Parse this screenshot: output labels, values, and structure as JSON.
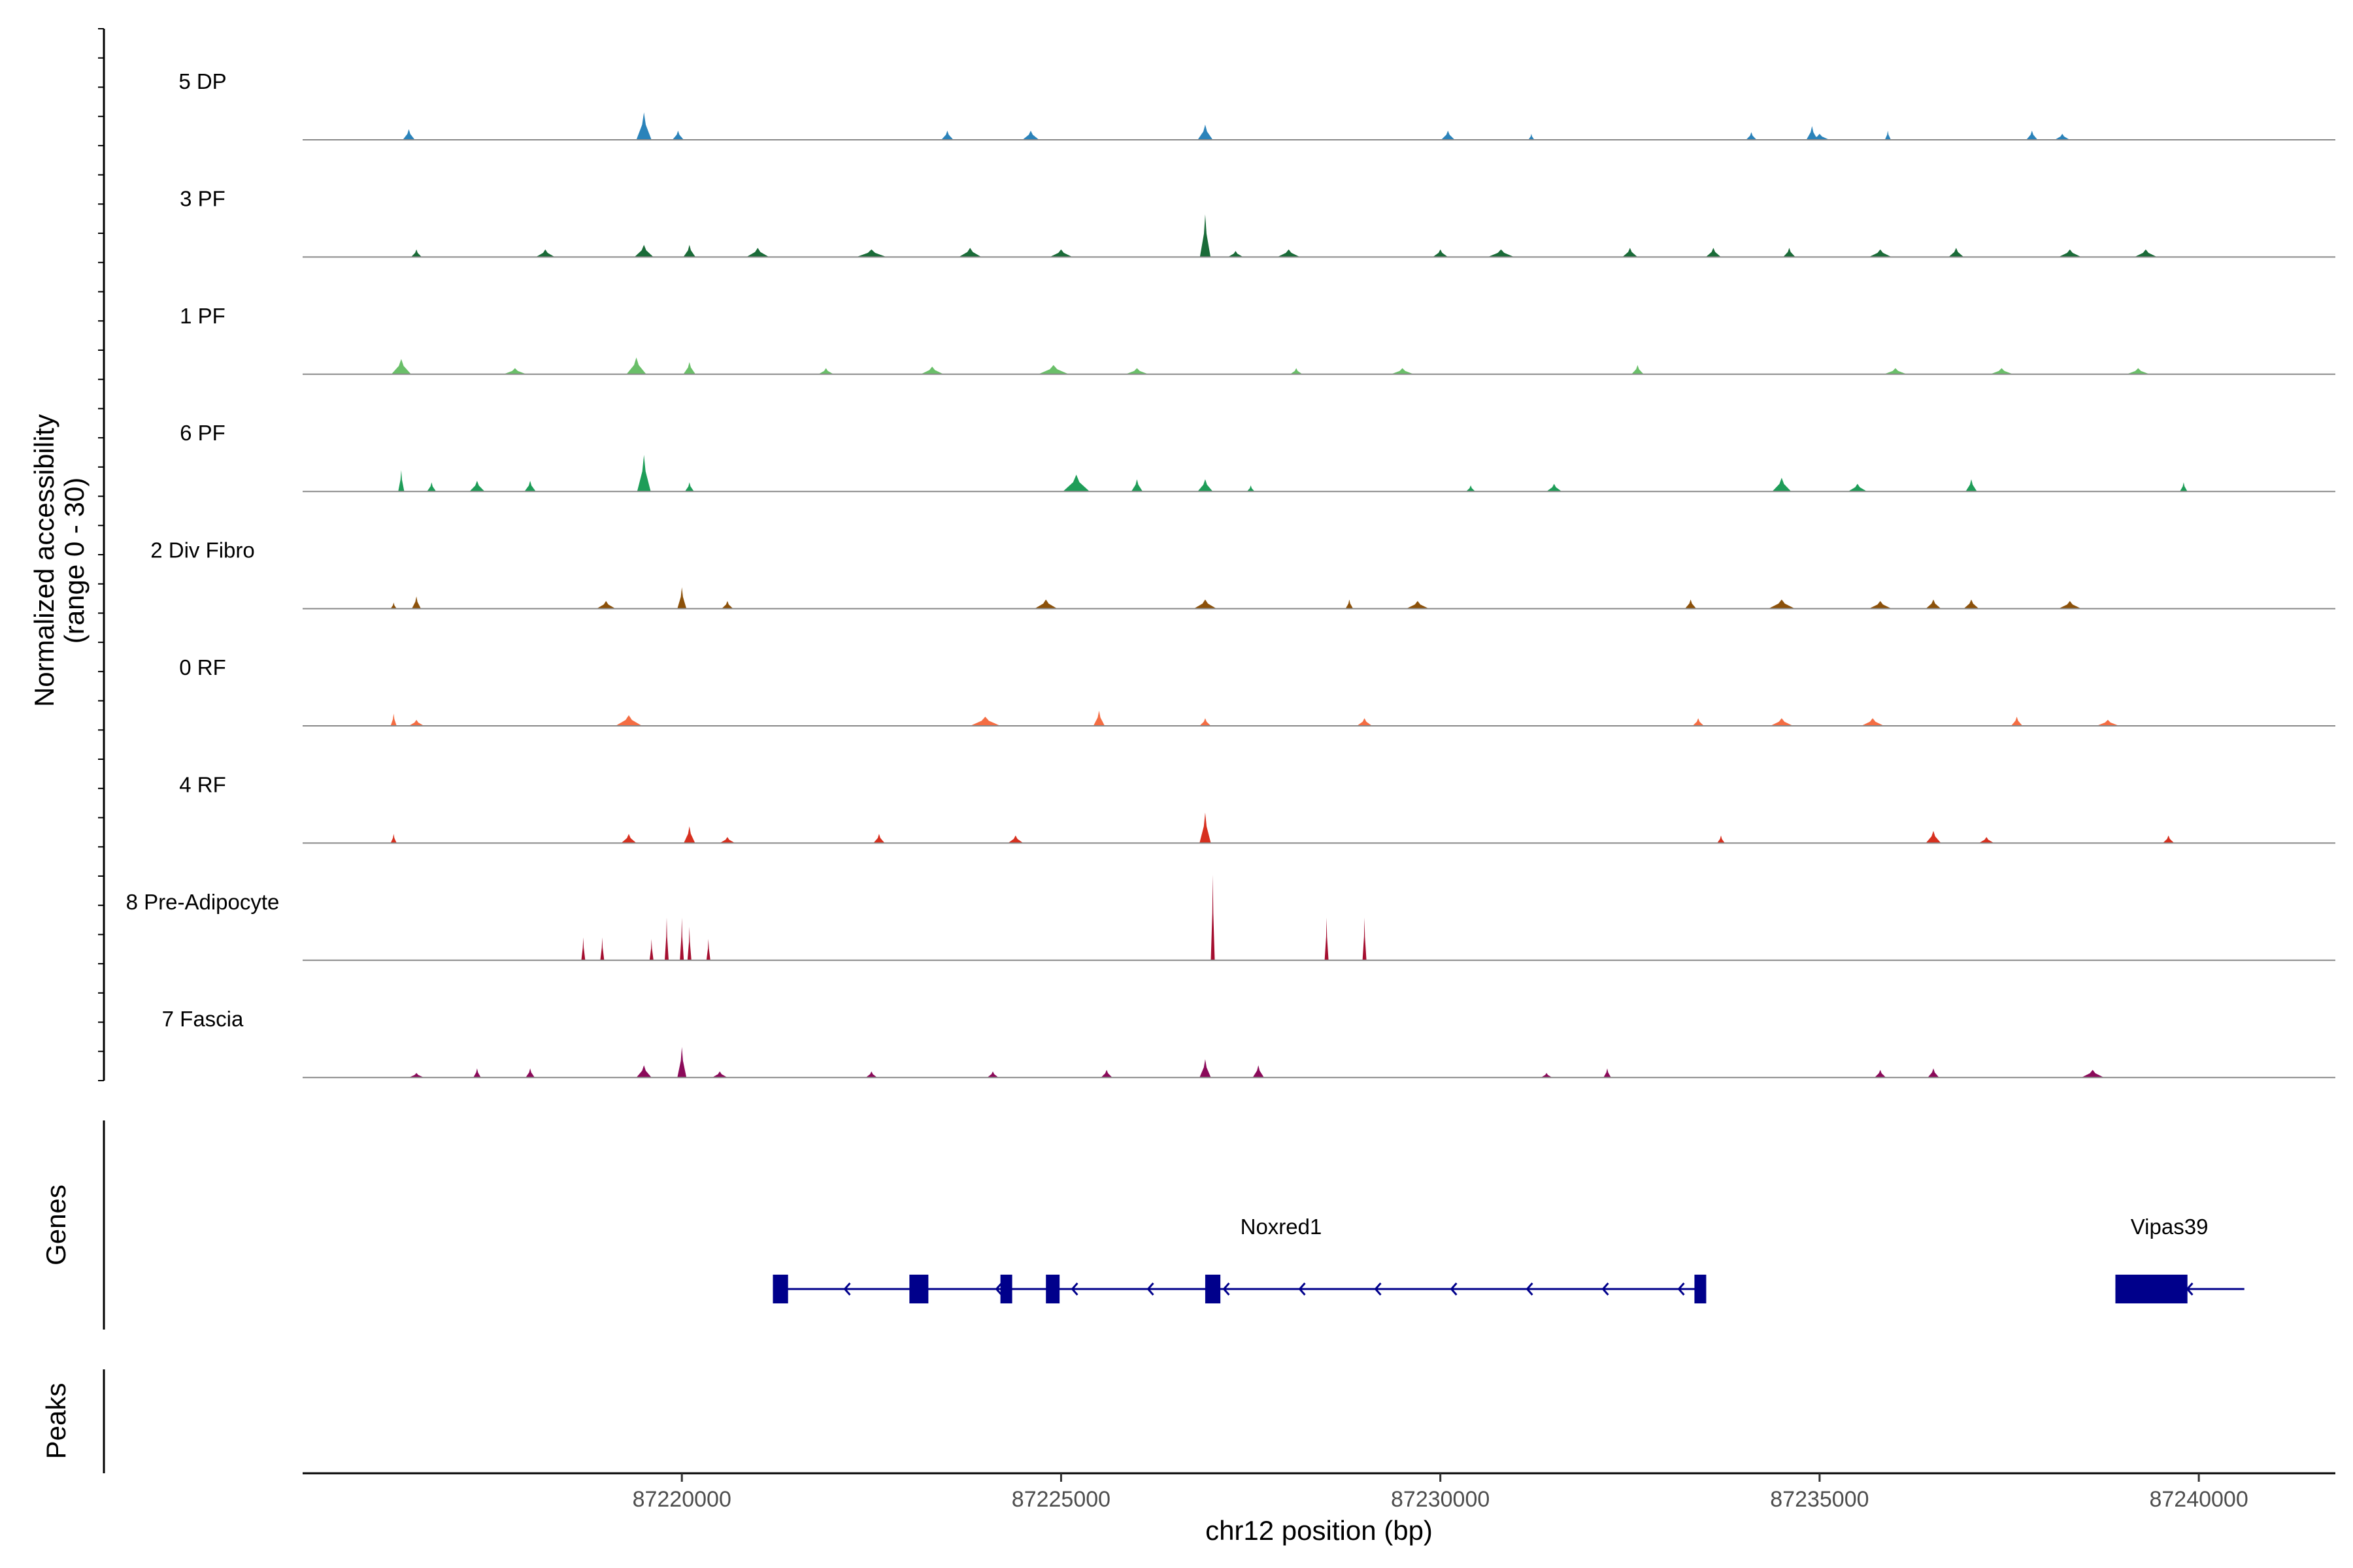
{
  "chart_data": {
    "type": "area",
    "chromosome": "chr12",
    "xlabel": "chr12 position (bp)",
    "xlim": [
      87215000,
      87241800
    ],
    "x_ticks": [
      87220000,
      87225000,
      87230000,
      87235000,
      87240000
    ],
    "x_tick_labels": [
      "87220000",
      "87225000",
      "87230000",
      "87235000",
      "87240000"
    ],
    "ylabel": "Normalized accessibility",
    "ylabel_range": "(range 0 - 30)",
    "ylim": [
      0,
      30
    ],
    "grid": false,
    "series": [
      {
        "name": "5 DP",
        "color": "#2b83ba",
        "peaks": [
          [
            87216400,
            3.5,
            160
          ],
          [
            87219500,
            9.0,
            200
          ],
          [
            87219950,
            3.0,
            150
          ],
          [
            87223500,
            3.0,
            160
          ],
          [
            87224600,
            3.0,
            220
          ],
          [
            87226900,
            5.0,
            200
          ],
          [
            87230100,
            3.0,
            180
          ],
          [
            87231200,
            2.0,
            80
          ],
          [
            87234100,
            2.5,
            140
          ],
          [
            87234900,
            4.5,
            150
          ],
          [
            87235000,
            2.0,
            260
          ],
          [
            87235900,
            3.0,
            80
          ],
          [
            87237800,
            3.0,
            150
          ],
          [
            87238200,
            2.0,
            200
          ]
        ]
      },
      {
        "name": "3 PF",
        "color": "#1a6b38",
        "peaks": [
          [
            87216500,
            2.5,
            140
          ],
          [
            87218200,
            2.5,
            250
          ],
          [
            87219500,
            4.0,
            250
          ],
          [
            87220100,
            4.0,
            160
          ],
          [
            87221000,
            3.0,
            300
          ],
          [
            87222500,
            2.5,
            400
          ],
          [
            87223800,
            3.0,
            300
          ],
          [
            87225000,
            2.5,
            300
          ],
          [
            87226900,
            14.0,
            140
          ],
          [
            87227300,
            2.0,
            200
          ],
          [
            87228000,
            2.5,
            300
          ],
          [
            87230000,
            2.5,
            200
          ],
          [
            87230800,
            2.5,
            350
          ],
          [
            87232500,
            3.0,
            200
          ],
          [
            87233600,
            3.0,
            200
          ],
          [
            87234600,
            3.0,
            160
          ],
          [
            87235800,
            2.5,
            300
          ],
          [
            87236800,
            3.0,
            200
          ],
          [
            87238300,
            2.5,
            300
          ],
          [
            87239300,
            2.5,
            300
          ]
        ]
      },
      {
        "name": "1 PF",
        "color": "#6abf69",
        "peaks": [
          [
            87216300,
            5.0,
            260
          ],
          [
            87217800,
            2.0,
            300
          ],
          [
            87219400,
            5.5,
            260
          ],
          [
            87220100,
            4.0,
            160
          ],
          [
            87221900,
            2.0,
            200
          ],
          [
            87223300,
            2.5,
            300
          ],
          [
            87224900,
            3.0,
            400
          ],
          [
            87226000,
            2.0,
            300
          ],
          [
            87228100,
            2.0,
            160
          ],
          [
            87229500,
            2.0,
            300
          ],
          [
            87232600,
            3.0,
            160
          ],
          [
            87236000,
            2.0,
            300
          ],
          [
            87237400,
            2.0,
            300
          ],
          [
            87239200,
            2.0,
            300
          ]
        ]
      },
      {
        "name": "6 PF",
        "color": "#1e9d58",
        "peaks": [
          [
            87216300,
            7.0,
            80
          ],
          [
            87216700,
            3.0,
            120
          ],
          [
            87217300,
            3.5,
            200
          ],
          [
            87218000,
            3.5,
            150
          ],
          [
            87219500,
            12.0,
            180
          ],
          [
            87220100,
            3.0,
            120
          ],
          [
            87225200,
            5.5,
            350
          ],
          [
            87226000,
            4.0,
            150
          ],
          [
            87226900,
            4.0,
            200
          ],
          [
            87227500,
            2.0,
            100
          ],
          [
            87230400,
            2.0,
            120
          ],
          [
            87231500,
            2.5,
            200
          ],
          [
            87234500,
            4.5,
            250
          ],
          [
            87235500,
            2.5,
            250
          ],
          [
            87237000,
            4.0,
            150
          ],
          [
            87239800,
            3.0,
            100
          ]
        ]
      },
      {
        "name": "2 Div Fibro",
        "color": "#8c510a",
        "peaks": [
          [
            87216200,
            2.0,
            80
          ],
          [
            87216500,
            4.0,
            120
          ],
          [
            87219000,
            2.5,
            250
          ],
          [
            87220000,
            7.0,
            120
          ],
          [
            87220600,
            2.5,
            150
          ],
          [
            87224800,
            3.0,
            300
          ],
          [
            87226900,
            3.0,
            300
          ],
          [
            87228800,
            3.0,
            100
          ],
          [
            87229700,
            2.5,
            300
          ],
          [
            87233300,
            3.0,
            150
          ],
          [
            87234500,
            3.0,
            350
          ],
          [
            87235800,
            2.5,
            300
          ],
          [
            87236500,
            3.0,
            200
          ],
          [
            87237000,
            3.0,
            200
          ],
          [
            87238300,
            2.5,
            300
          ]
        ]
      },
      {
        "name": "0 RF",
        "color": "#f46d43",
        "peaks": [
          [
            87216200,
            4.0,
            80
          ],
          [
            87216500,
            2.0,
            200
          ],
          [
            87219300,
            3.5,
            350
          ],
          [
            87224000,
            3.0,
            400
          ],
          [
            87225500,
            5.0,
            150
          ],
          [
            87226900,
            2.5,
            150
          ],
          [
            87229000,
            2.5,
            200
          ],
          [
            87233400,
            2.5,
            150
          ],
          [
            87234500,
            2.5,
            300
          ],
          [
            87235700,
            2.5,
            300
          ],
          [
            87237600,
            3.0,
            150
          ],
          [
            87238800,
            2.0,
            300
          ]
        ]
      },
      {
        "name": "4 RF",
        "color": "#d7301f",
        "peaks": [
          [
            87216200,
            3.0,
            80
          ],
          [
            87219300,
            3.0,
            200
          ],
          [
            87220100,
            5.5,
            150
          ],
          [
            87220600,
            2.0,
            200
          ],
          [
            87222600,
            3.0,
            150
          ],
          [
            87224400,
            2.5,
            200
          ],
          [
            87226900,
            10.0,
            150
          ],
          [
            87233700,
            2.5,
            100
          ],
          [
            87236500,
            4.0,
            200
          ],
          [
            87237200,
            2.0,
            200
          ],
          [
            87239600,
            2.5,
            150
          ]
        ]
      },
      {
        "name": "8 Pre-Adipocyte",
        "color": "#a50f30",
        "peaks": [
          [
            87218700,
            7.5,
            45
          ],
          [
            87218950,
            7.5,
            45
          ],
          [
            87219600,
            7.0,
            45
          ],
          [
            87219800,
            14.0,
            50
          ],
          [
            87220000,
            14.0,
            50
          ],
          [
            87220100,
            11.0,
            45
          ],
          [
            87220350,
            7.0,
            45
          ],
          [
            87227000,
            28.0,
            45
          ],
          [
            87228500,
            14.0,
            45
          ],
          [
            87229000,
            14.0,
            45
          ]
        ]
      },
      {
        "name": "7 Fascia",
        "color": "#8b0a5a",
        "peaks": [
          [
            87216500,
            1.5,
            200
          ],
          [
            87217300,
            3.0,
            100
          ],
          [
            87218000,
            3.0,
            120
          ],
          [
            87219500,
            4.0,
            200
          ],
          [
            87220000,
            10.0,
            120
          ],
          [
            87220500,
            2.0,
            200
          ],
          [
            87222500,
            2.0,
            150
          ],
          [
            87224100,
            2.0,
            150
          ],
          [
            87225600,
            2.5,
            150
          ],
          [
            87226900,
            6.0,
            150
          ],
          [
            87227600,
            4.0,
            150
          ],
          [
            87231400,
            1.5,
            150
          ],
          [
            87232200,
            3.0,
            100
          ],
          [
            87235800,
            2.5,
            150
          ],
          [
            87236500,
            3.0,
            150
          ],
          [
            87238600,
            2.5,
            300
          ]
        ]
      }
    ],
    "genes_panel": {
      "title": "Genes",
      "color": "#00008b",
      "genes": [
        {
          "name": "Noxred1",
          "strand": "-",
          "start": 87221200,
          "end": 87233500,
          "exons": [
            [
              87221200,
              87221400
            ],
            [
              87223000,
              87223250
            ],
            [
              87224200,
              87224350
            ],
            [
              87224800,
              87224980
            ],
            [
              87226900,
              87227100
            ],
            [
              87233350,
              87233500
            ]
          ]
        },
        {
          "name": "Vipas39",
          "strand": "-",
          "start": 87238900,
          "end": 87240600,
          "exons": [
            [
              87238900,
              87239850
            ]
          ]
        }
      ]
    },
    "peaks_panel": {
      "title": "Peaks",
      "regions": []
    }
  }
}
